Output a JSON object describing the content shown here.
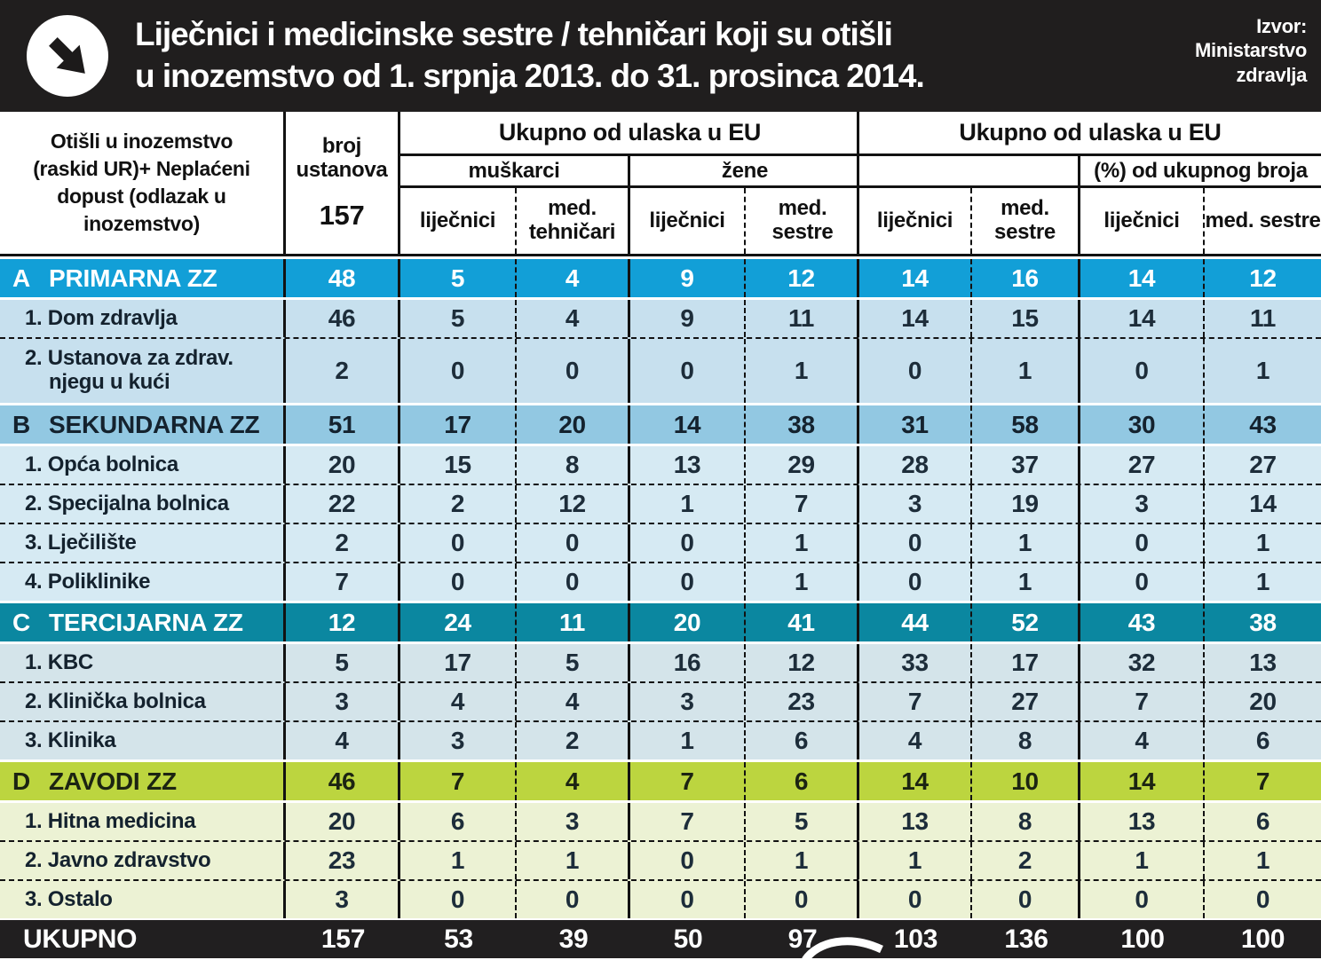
{
  "colors": {
    "banner": "#201e1e",
    "line": "#121212",
    "section_a": "#129fd7",
    "section_a_light": "#c7e0ee",
    "section_b": "#92c8e2",
    "section_b_light": "#d6eaf3",
    "section_c": "#0b87a0",
    "section_c_light": "#d4e4ea",
    "section_d": "#bcd53f",
    "section_d_light": "#ecf2d4",
    "total_bg": "#211f20",
    "number_ink": "#1d2d3a"
  },
  "header": {
    "title_line1": "Liječnici i medicinske sestre / tehničari koji su otišli",
    "title_line2": "u inozemstvo od 1. srpnja 2013. do 31. prosinca 2014.",
    "source": "Izvor:\nMinistarstvo\nzdravlja"
  },
  "chart_data": {
    "type": "table",
    "title": "Liječnici i medicinske sestre / tehničari koji su otišli u inozemstvo od 1. srpnja 2013. do 31. prosinca 2014.",
    "source": "Ministarstvo zdravlja",
    "corner_label": "Otišli u inozemstvo\n(raskid UR)+ Neplaćeni\ndopust (odlazak u\ninozemstvo)",
    "institutions_label": "broj ustanova",
    "institutions_count": "157",
    "groups": [
      {
        "title": "Ukupno od ulaska u EU",
        "subgroups": [
          {
            "label": "muškarci",
            "cols": [
              "liječnici",
              "med. tehničari"
            ]
          },
          {
            "label": "žene",
            "cols": [
              "liječnici",
              "med. sestre"
            ]
          }
        ]
      },
      {
        "title": "Ukupno od ulaska u EU",
        "subgroups": [
          {
            "label": "",
            "cols": [
              "liječnici",
              "med. sestre"
            ]
          },
          {
            "label": "(%) od ukupnog broja",
            "cols": [
              "liječnici",
              "med. sestre"
            ]
          }
        ]
      }
    ],
    "rows": [
      {
        "kind": "section",
        "theme": "a",
        "letter": "A",
        "name": "PRIMARNA ZZ",
        "values": [
          "48",
          "5",
          "4",
          "9",
          "12",
          "14",
          "16",
          "14",
          "12"
        ]
      },
      {
        "kind": "sub",
        "theme": "a",
        "label": "1. Dom zdravlja",
        "values": [
          "46",
          "5",
          "4",
          "9",
          "11",
          "14",
          "15",
          "14",
          "11"
        ]
      },
      {
        "kind": "sub",
        "theme": "a",
        "tall": true,
        "label": "2. Ustanova za zdrav. njegu u kući",
        "values": [
          "2",
          "0",
          "0",
          "0",
          "1",
          "0",
          "1",
          "0",
          "1"
        ]
      },
      {
        "kind": "section",
        "theme": "b",
        "letter": "B",
        "name": "SEKUNDARNA ZZ",
        "values": [
          "51",
          "17",
          "20",
          "14",
          "38",
          "31",
          "58",
          "30",
          "43"
        ]
      },
      {
        "kind": "sub",
        "theme": "b",
        "label": "1. Opća bolnica",
        "values": [
          "20",
          "15",
          "8",
          "13",
          "29",
          "28",
          "37",
          "27",
          "27"
        ]
      },
      {
        "kind": "sub",
        "theme": "b",
        "label": "2. Specijalna bolnica",
        "values": [
          "22",
          "2",
          "12",
          "1",
          "7",
          "3",
          "19",
          "3",
          "14"
        ]
      },
      {
        "kind": "sub",
        "theme": "b",
        "label": "3. Lječilište",
        "values": [
          "2",
          "0",
          "0",
          "0",
          "1",
          "0",
          "1",
          "0",
          "1"
        ]
      },
      {
        "kind": "sub",
        "theme": "b",
        "label": "4. Poliklinike",
        "values": [
          "7",
          "0",
          "0",
          "0",
          "1",
          "0",
          "1",
          "0",
          "1"
        ]
      },
      {
        "kind": "section",
        "theme": "c",
        "letter": "C",
        "name": "TERCIJARNA ZZ",
        "values": [
          "12",
          "24",
          "11",
          "20",
          "41",
          "44",
          "52",
          "43",
          "38"
        ]
      },
      {
        "kind": "sub",
        "theme": "c",
        "label": "1. KBC",
        "values": [
          "5",
          "17",
          "5",
          "16",
          "12",
          "33",
          "17",
          "32",
          "13"
        ]
      },
      {
        "kind": "sub",
        "theme": "c",
        "label": "2. Klinička bolnica",
        "values": [
          "3",
          "4",
          "4",
          "3",
          "23",
          "7",
          "27",
          "7",
          "20"
        ]
      },
      {
        "kind": "sub",
        "theme": "c",
        "label": "3. Klinika",
        "values": [
          "4",
          "3",
          "2",
          "1",
          "6",
          "4",
          "8",
          "4",
          "6"
        ]
      },
      {
        "kind": "section",
        "theme": "d",
        "letter": "D",
        "name": "ZAVODI ZZ",
        "values": [
          "46",
          "7",
          "4",
          "7",
          "6",
          "14",
          "10",
          "14",
          "7"
        ]
      },
      {
        "kind": "sub",
        "theme": "d",
        "label": "1. Hitna medicina",
        "values": [
          "20",
          "6",
          "3",
          "7",
          "5",
          "13",
          "8",
          "13",
          "6"
        ]
      },
      {
        "kind": "sub",
        "theme": "d",
        "label": "2. Javno zdravstvo",
        "values": [
          "23",
          "1",
          "1",
          "0",
          "1",
          "1",
          "2",
          "1",
          "1"
        ]
      },
      {
        "kind": "sub",
        "theme": "d",
        "label": "3. Ostalo",
        "values": [
          "3",
          "0",
          "0",
          "0",
          "0",
          "0",
          "0",
          "0",
          "0"
        ]
      }
    ],
    "total": {
      "label": "UKUPNO",
      "values": [
        "157",
        "53",
        "39",
        "50",
        "97",
        "103",
        "136",
        "100",
        "100"
      ]
    }
  }
}
